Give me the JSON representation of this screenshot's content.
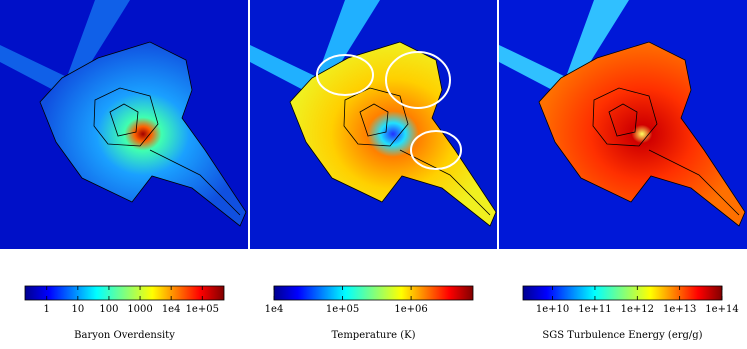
{
  "chart_data": [
    {
      "type": "colorbar",
      "label": "Baryon Overdensity",
      "log_scale": true,
      "clim": [
        0.2,
        500000
      ],
      "ticks": [
        1,
        10,
        100,
        1000,
        {
          "value": 10000,
          "label": "1e4"
        },
        {
          "value": 100000,
          "label": "1e+05"
        }
      ]
    },
    {
      "type": "colorbar",
      "label": "Temperature  (K)",
      "log_scale": true,
      "clim": [
        10000,
        8000000
      ],
      "ticks": [
        {
          "value": 10000,
          "label": "1e4"
        },
        {
          "value": 100000,
          "label": "1e+05"
        },
        {
          "value": 1000000,
          "label": "1e+06"
        }
      ]
    },
    {
      "type": "colorbar",
      "label": "SGS Turbulence Energy  (erg/g)",
      "log_scale": true,
      "clim": [
        2000000000,
        100000000000000
      ],
      "ticks": [
        {
          "value": 10000000000,
          "label": "1e+10"
        },
        {
          "value": 100000000000,
          "label": "1e+11"
        },
        {
          "value": 1000000000000,
          "label": "1e+12"
        },
        {
          "value": 10000000000000,
          "label": "1e+13"
        },
        {
          "value": 100000000000000,
          "label": "1e+14"
        }
      ]
    }
  ]
}
